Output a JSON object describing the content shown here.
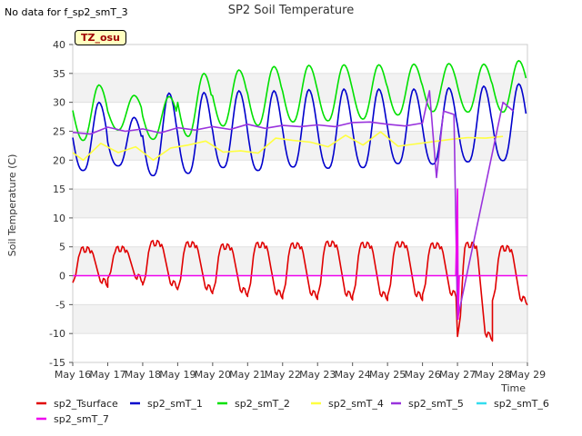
{
  "top_note": "No data for f_sp2_smT_3",
  "badge": "TZ_osu",
  "chart_data": {
    "type": "line",
    "title": "SP2 Soil Temperature",
    "xlabel": "Time",
    "ylabel": "Soil Temperature (C)",
    "ylim": [
      -15,
      40
    ],
    "yticks": [
      -15,
      -10,
      -5,
      0,
      5,
      10,
      15,
      20,
      25,
      30,
      35,
      40
    ],
    "x_days_range": [
      16,
      29
    ],
    "categories": [
      "May 16",
      "May 17",
      "May 18",
      "May 19",
      "May 20",
      "May 21",
      "May 22",
      "May 23",
      "May 24",
      "May 25",
      "May 26",
      "May 27",
      "May 28",
      "May 29"
    ],
    "grid": "horizontal bands",
    "legend_position": "bottom",
    "series": [
      {
        "name": "sp2_Tsurface",
        "color": "#e00000",
        "daily_min": [
          -1.2,
          -0.5,
          -1.6,
          -2.3,
          -2.8,
          -3.2,
          -3.3,
          -3.4,
          -3.5,
          -3.5,
          -3.3,
          -10.5,
          -4.3
        ],
        "daily_max": [
          4.5,
          4.6,
          5.6,
          5.4,
          5.0,
          5.3,
          5.2,
          5.5,
          5.3,
          5.4,
          5.2,
          5.3,
          4.7
        ],
        "spike": {
          "day": 27.0,
          "value": -10.5
        }
      },
      {
        "name": "sp2_smT_1",
        "color": "#0000cc",
        "daily_min": [
          18.2,
          19.0,
          17.3,
          17.7,
          18.7,
          18.2,
          18.8,
          18.6,
          18.7,
          19.4,
          19.3,
          19.7,
          19.9
        ],
        "daily_max": [
          30.0,
          27.4,
          31.6,
          31.7,
          32.0,
          32.0,
          32.2,
          32.3,
          32.3,
          32.3,
          32.5,
          32.8,
          33.2
        ]
      },
      {
        "name": "sp2_smT_2",
        "color": "#00e000",
        "daily_min": [
          23.4,
          25.2,
          23.6,
          24.1,
          25.9,
          26.0,
          26.6,
          26.8,
          27.1,
          27.8,
          28.4,
          28.3,
          28.3
        ],
        "daily_max": [
          33.0,
          31.2,
          31.0,
          35.0,
          35.6,
          36.2,
          36.4,
          36.5,
          36.5,
          36.6,
          36.7,
          36.6,
          37.2
        ]
      },
      {
        "name": "sp2_smT_4",
        "color": "#ffff40",
        "points": [
          [
            16.0,
            21.3
          ],
          [
            16.3,
            20.0
          ],
          [
            16.8,
            22.9
          ],
          [
            17.3,
            21.3
          ],
          [
            17.8,
            22.3
          ],
          [
            18.3,
            20.0
          ],
          [
            18.8,
            22.1
          ],
          [
            19.3,
            22.6
          ],
          [
            19.8,
            23.3
          ],
          [
            20.3,
            21.4
          ],
          [
            20.8,
            21.6
          ],
          [
            21.3,
            21.2
          ],
          [
            21.8,
            23.8
          ],
          [
            22.3,
            23.4
          ],
          [
            22.8,
            23.1
          ],
          [
            23.3,
            22.3
          ],
          [
            23.8,
            24.3
          ],
          [
            24.3,
            22.6
          ],
          [
            24.8,
            24.9
          ],
          [
            25.3,
            22.4
          ],
          [
            25.8,
            22.8
          ],
          [
            26.3,
            23.2
          ],
          [
            26.8,
            23.6
          ],
          [
            27.3,
            23.9
          ],
          [
            27.8,
            23.8
          ],
          [
            28.3,
            24.1
          ]
        ]
      },
      {
        "name": "sp2_smT_5",
        "color": "#9933dd",
        "points": [
          [
            16.0,
            24.8
          ],
          [
            16.5,
            24.5
          ],
          [
            17.0,
            25.7
          ],
          [
            17.5,
            25.0
          ],
          [
            18.0,
            25.4
          ],
          [
            18.5,
            24.7
          ],
          [
            19.0,
            25.6
          ],
          [
            19.5,
            25.2
          ],
          [
            20.0,
            25.8
          ],
          [
            20.5,
            25.3
          ],
          [
            21.0,
            26.2
          ],
          [
            21.5,
            25.5
          ],
          [
            22.0,
            26.0
          ],
          [
            22.5,
            25.8
          ],
          [
            23.0,
            26.1
          ],
          [
            23.5,
            25.8
          ],
          [
            24.0,
            26.5
          ],
          [
            24.5,
            26.6
          ],
          [
            25.0,
            26.2
          ],
          [
            25.5,
            25.9
          ],
          [
            26.0,
            26.4
          ],
          [
            26.2,
            32.0
          ],
          [
            26.4,
            17.0
          ],
          [
            26.6,
            28.5
          ],
          [
            26.9,
            27.9
          ],
          [
            27.0,
            -7.5
          ],
          [
            28.3,
            30.0
          ],
          [
            28.6,
            28.5
          ]
        ]
      },
      {
        "name": "sp2_smT_6",
        "color": "#33ddee",
        "points": []
      },
      {
        "name": "sp2_smT_7",
        "color": "#ee00ee",
        "points": [
          [
            16.0,
            0.0
          ],
          [
            26.95,
            0.0
          ],
          [
            27.0,
            15.0
          ],
          [
            27.02,
            -7.5
          ],
          [
            27.05,
            0.0
          ],
          [
            29.0,
            0.0
          ]
        ]
      }
    ]
  }
}
